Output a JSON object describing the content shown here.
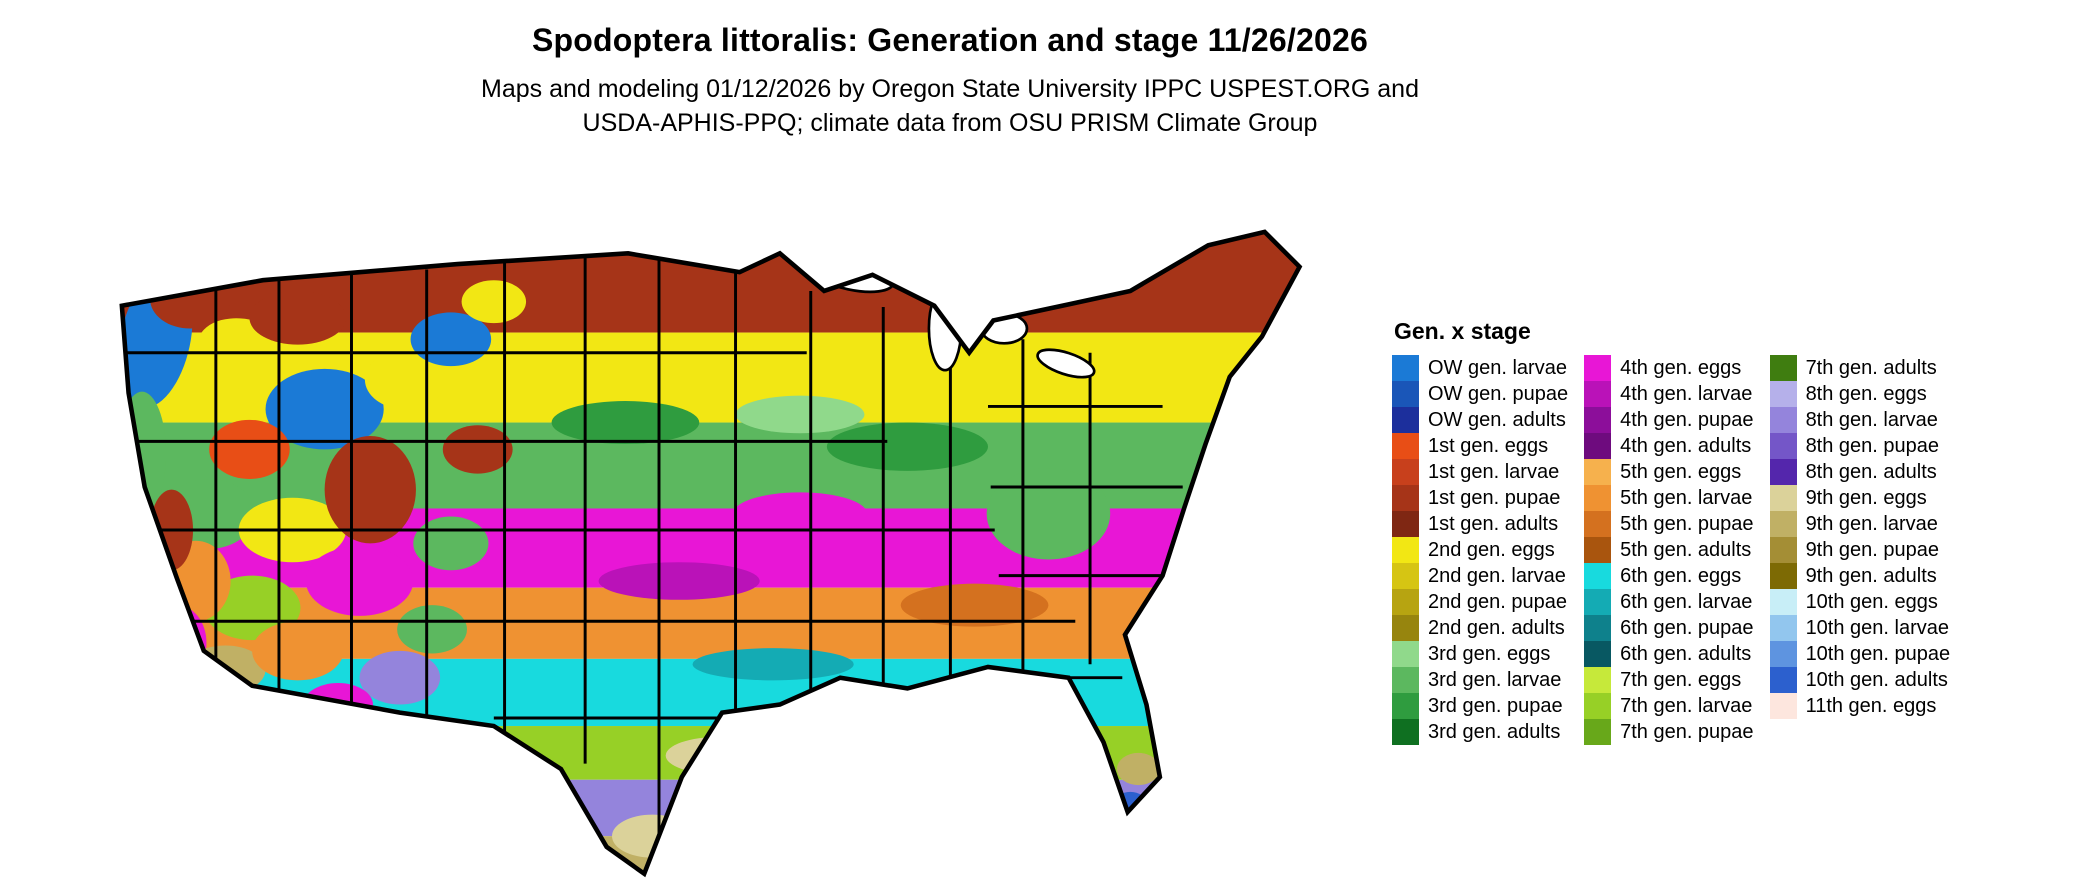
{
  "header": {
    "title": "Spodoptera littoralis: Generation and stage 11/26/2026",
    "subtitle_line1": "Maps and modeling 01/12/2026 by Oregon State University IPPC USPEST.ORG and",
    "subtitle_line2": "USDA-APHIS-PPQ; climate data from OSU PRISM Climate Group"
  },
  "legend": {
    "title": "Gen. x stage",
    "columns": [
      {
        "items": [
          {
            "label": "OW gen. larvae",
            "color": "#1b7ad6"
          },
          {
            "label": "OW gen. pupae",
            "color": "#1a56b8"
          },
          {
            "label": "OW gen. adults",
            "color": "#1c2f9c"
          },
          {
            "label": "1st gen. eggs",
            "color": "#e84e16"
          },
          {
            "label": "1st gen. larvae",
            "color": "#c8401c"
          },
          {
            "label": "1st gen. pupae",
            "color": "#a63418"
          },
          {
            "label": "1st gen. adults",
            "color": "#7f2713"
          },
          {
            "label": "2nd gen. eggs",
            "color": "#f2e714"
          },
          {
            "label": "2nd gen. larvae",
            "color": "#d6c513"
          },
          {
            "label": "2nd gen. pupae",
            "color": "#b7a411"
          },
          {
            "label": "2nd gen. adults",
            "color": "#97850e"
          },
          {
            "label": "3rd gen. eggs",
            "color": "#90d98b"
          },
          {
            "label": "3rd gen. larvae",
            "color": "#5cb85f"
          },
          {
            "label": "3rd gen. pupae",
            "color": "#2f9c3f"
          },
          {
            "label": "3rd gen. adults",
            "color": "#0f7021"
          }
        ]
      },
      {
        "items": [
          {
            "label": "4th gen. eggs",
            "color": "#e816d6"
          },
          {
            "label": "4th gen. larvae",
            "color": "#ba12b8"
          },
          {
            "label": "4th gen. pupae",
            "color": "#8c0e9a"
          },
          {
            "label": "4th gen. adults",
            "color": "#6e0b7e"
          },
          {
            "label": "5th gen. eggs",
            "color": "#f6b14d"
          },
          {
            "label": "5th gen. larvae",
            "color": "#ef9232"
          },
          {
            "label": "5th gen. pupae",
            "color": "#d4711f"
          },
          {
            "label": "5th gen. adults",
            "color": "#a9550e"
          },
          {
            "label": "6th gen. eggs",
            "color": "#18dade"
          },
          {
            "label": "6th gen. larvae",
            "color": "#14abb4"
          },
          {
            "label": "6th gen. pupae",
            "color": "#0e818c"
          },
          {
            "label": "6th gen. adults",
            "color": "#085862"
          },
          {
            "label": "7th gen. eggs",
            "color": "#c6e93a"
          },
          {
            "label": "7th gen. larvae",
            "color": "#97d026"
          },
          {
            "label": "7th gen. pupae",
            "color": "#68a81a"
          }
        ]
      },
      {
        "items": [
          {
            "label": "7th gen. adults",
            "color": "#3f7d10"
          },
          {
            "label": "8th gen. eggs",
            "color": "#b5b0ea"
          },
          {
            "label": "8th gen. larvae",
            "color": "#9484dc"
          },
          {
            "label": "8th gen. pupae",
            "color": "#7456c8"
          },
          {
            "label": "8th gen. adults",
            "color": "#5426ac"
          },
          {
            "label": "9th gen. eggs",
            "color": "#dbd29a"
          },
          {
            "label": "9th gen. larvae",
            "color": "#c0b065"
          },
          {
            "label": "9th gen. pupae",
            "color": "#a48e35"
          },
          {
            "label": "9th gen. adults",
            "color": "#7d6a04"
          },
          {
            "label": "10th gen. eggs",
            "color": "#c8eef7"
          },
          {
            "label": "10th gen. larvae",
            "color": "#92c6ee"
          },
          {
            "label": "10th gen. pupae",
            "color": "#5e94e0"
          },
          {
            "label": "10th gen. adults",
            "color": "#2c60ce"
          },
          {
            "label": "11th gen. eggs",
            "color": "#fde6de"
          }
        ]
      }
    ]
  },
  "map": {
    "outline_color": "#000000",
    "background": "#ffffff"
  }
}
